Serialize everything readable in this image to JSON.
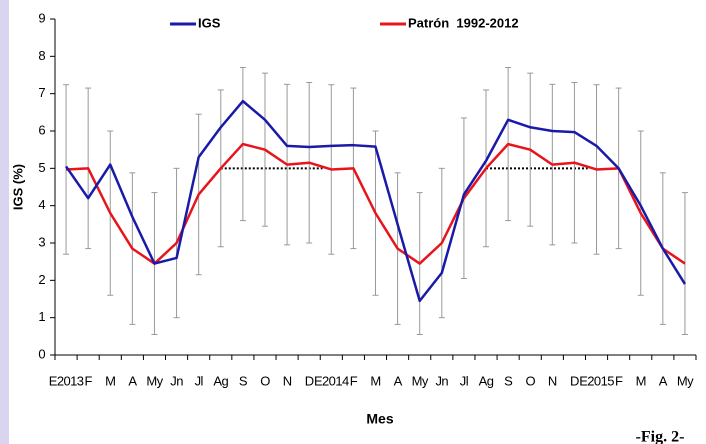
{
  "chart_data": {
    "type": "line",
    "xlabel": "Mes",
    "ylabel": "IGS (%)",
    "caption": "-Fig. 2-",
    "categories": [
      "E2013",
      "F",
      "M",
      "A",
      "My",
      "Jn",
      "Jl",
      "Ag",
      "S",
      "O",
      "N",
      "D",
      "E2014",
      "F",
      "M",
      "A",
      "My",
      "Jn",
      "Jl",
      "Ag",
      "S",
      "O",
      "N",
      "D",
      "E2015",
      "F",
      "M",
      "A",
      "My"
    ],
    "series": [
      {
        "name": "IGS",
        "color": "#1a1aa8",
        "values": [
          5.05,
          4.2,
          5.1,
          3.7,
          2.45,
          2.6,
          5.3,
          6.1,
          6.8,
          6.3,
          5.6,
          5.57,
          5.6,
          5.62,
          5.58,
          3.5,
          1.45,
          2.2,
          4.3,
          5.2,
          6.3,
          6.1,
          6.0,
          5.97,
          5.6,
          5.0,
          4.0,
          2.85,
          1.9
        ]
      },
      {
        "name": "Patrón  1992-2012",
        "color": "#e8141b",
        "values": [
          4.97,
          5.0,
          3.8,
          2.85,
          2.45,
          3.0,
          4.3,
          5.0,
          5.65,
          5.5,
          5.1,
          5.15,
          4.97,
          5.0,
          3.8,
          2.85,
          2.45,
          3.0,
          4.2,
          5.0,
          5.65,
          5.5,
          5.1,
          5.15,
          4.97,
          5.0,
          3.8,
          2.85,
          2.45
        ],
        "errors": [
          2.27,
          2.15,
          2.2,
          2.03,
          1.9,
          2.0,
          2.15,
          2.1,
          2.05,
          2.05,
          2.15,
          2.15,
          2.27,
          2.15,
          2.2,
          2.03,
          1.9,
          2.0,
          2.15,
          2.1,
          2.05,
          2.05,
          2.15,
          2.15,
          2.27,
          2.15,
          2.2,
          2.03,
          1.9
        ],
        "error_color": "#999999"
      }
    ],
    "reference_value": 5,
    "ylim": [
      0,
      9
    ],
    "yticks": [
      0,
      1,
      2,
      3,
      4,
      5,
      6,
      7,
      8,
      9
    ],
    "grid": false
  }
}
